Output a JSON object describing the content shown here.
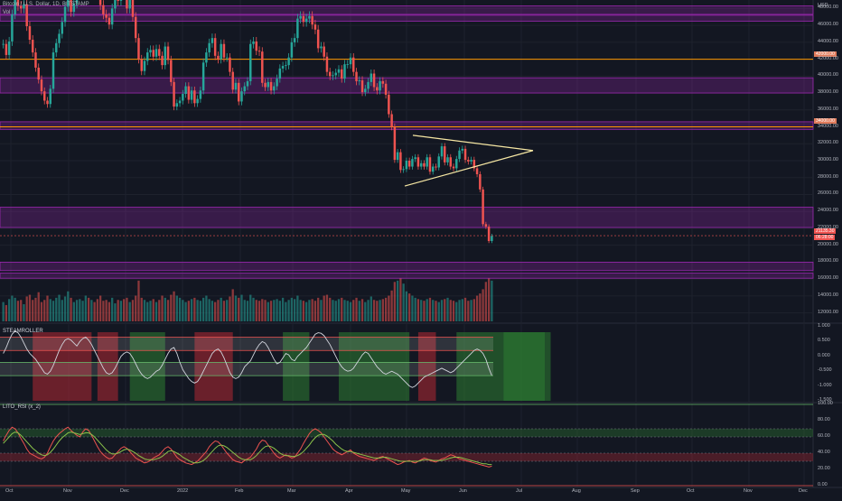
{
  "header": {
    "symbol_title": "Bitcoin / U.S. Dollar, 1D, BITSTAMP",
    "vol_label": "Vol",
    "currency": "USD"
  },
  "colors": {
    "background": "#131722",
    "up": "#26a69a",
    "down": "#ef5350",
    "zone_purple": "#9c27b0",
    "orange_line": "#ff9800",
    "triangle": "#f5e6a3"
  },
  "chart_data": [
    {
      "type": "candlestick",
      "title": "Bitcoin / U.S. Dollar, 1D, BITSTAMP",
      "x_tick_labels": [
        "Oct",
        "Nov",
        "Dec",
        "2022",
        "Feb",
        "Mar",
        "Apr",
        "May",
        "Jun",
        "Jul",
        "Aug",
        "Sep",
        "Oct",
        "Nov",
        "Dec"
      ],
      "y_tick_labels": [
        "12000.00",
        "14000.00",
        "16000.00",
        "18000.00",
        "20000.00",
        "22000.00",
        "24000.00",
        "26000.00",
        "28000.00",
        "30000.00",
        "32000.00",
        "34000.00",
        "36000.00",
        "38000.00",
        "40000.00",
        "42000.00",
        "44000.00",
        "46000.00",
        "48000.00"
      ],
      "ylim": [
        11000,
        49000
      ],
      "current_price_label": "21135.30",
      "current_countdown_label": "06:28:00",
      "orange_level_labels": [
        "42000.00",
        "34000.00"
      ],
      "horizontal_levels": [
        42000,
        34000
      ],
      "supply_demand_zones": [
        [
          47300,
          48300
        ],
        [
          46500,
          47200
        ],
        [
          38000,
          39800
        ],
        [
          33700,
          34600
        ],
        [
          22100,
          24500
        ],
        [
          17000,
          18000
        ],
        [
          16100,
          16700
        ]
      ],
      "triangle": {
        "upper": [
          [
            33000,
            "May 2"
          ],
          [
            31200,
            "Jun 12"
          ]
        ],
        "lower": [
          [
            27000,
            "May 1"
          ],
          [
            31200,
            "Jun 12"
          ]
        ]
      },
      "close_series": [
        43800,
        42500,
        44100,
        47300,
        49000,
        48300,
        48000,
        48500,
        45900,
        44300,
        42800,
        41000,
        39600,
        38200,
        37100,
        36700,
        38500,
        42800,
        43900,
        45000,
        46400,
        48200,
        49000,
        47600,
        48600,
        50300,
        51200,
        52700,
        53100,
        51600,
        51900,
        51200,
        50700,
        48400,
        47300,
        46900,
        46100,
        48000,
        49800,
        48900,
        51200,
        50700,
        48000,
        49200,
        47000,
        44500,
        42000,
        40600,
        41800,
        42800,
        43100,
        42300,
        43200,
        42400,
        41300,
        43500,
        41900,
        39300,
        36400,
        36800,
        37100,
        37900,
        38800,
        37200,
        38300,
        36800,
        37300,
        38300,
        41600,
        42800,
        43900,
        44500,
        42400,
        42000,
        43800,
        42200,
        42200,
        40500,
        38400,
        39200,
        37000,
        38200,
        38800,
        39400,
        43800,
        44100,
        43000,
        42900,
        39200,
        38700,
        39300,
        38300,
        38800,
        39700,
        40900,
        41200,
        41300,
        42200,
        44000,
        44500,
        46800,
        47100,
        46400,
        46800,
        47100,
        46100,
        45500,
        43300,
        43500,
        42300,
        40500,
        40000,
        40100,
        40400,
        40800,
        39700,
        41400,
        41400,
        42200,
        40500,
        39400,
        39500,
        38100,
        38500,
        39300,
        40300,
        38700,
        38300,
        39400,
        39100,
        37800,
        35500,
        34000,
        30100,
        31000,
        28900,
        29000,
        30000,
        29300,
        30200,
        30400,
        29300,
        29700,
        29300,
        30400,
        28700,
        29300,
        29200,
        30500,
        31700,
        29800,
        30400,
        29300,
        29100,
        30200,
        31200,
        31400,
        30100,
        29900,
        30100,
        29100,
        28400,
        26600,
        22500,
        22200,
        20500,
        21100
      ],
      "volume_series": [
        0.45,
        0.38,
        0.52,
        0.6,
        0.55,
        0.48,
        0.5,
        0.4,
        0.58,
        0.62,
        0.5,
        0.55,
        0.68,
        0.45,
        0.5,
        0.6,
        0.52,
        0.48,
        0.55,
        0.62,
        0.5,
        0.58,
        0.7,
        0.55,
        0.45,
        0.5,
        0.52,
        0.48,
        0.6,
        0.55,
        0.5,
        0.45,
        0.52,
        0.6,
        0.48,
        0.5,
        0.45,
        0.55,
        0.42,
        0.5,
        0.48,
        0.52,
        0.55,
        0.45,
        0.5,
        0.6,
        0.95,
        0.55,
        0.5,
        0.45,
        0.48,
        0.52,
        0.45,
        0.5,
        0.6,
        0.55,
        0.5,
        0.62,
        0.7,
        0.6,
        0.55,
        0.5,
        0.45,
        0.48,
        0.52,
        0.55,
        0.5,
        0.48,
        0.55,
        0.6,
        0.52,
        0.48,
        0.45,
        0.5,
        0.55,
        0.48,
        0.5,
        0.58,
        0.75,
        0.6,
        0.55,
        0.62,
        0.5,
        0.48,
        0.62,
        0.55,
        0.5,
        0.48,
        0.52,
        0.5,
        0.45,
        0.48,
        0.5,
        0.52,
        0.48,
        0.55,
        0.45,
        0.5,
        0.55,
        0.52,
        0.6,
        0.5,
        0.48,
        0.45,
        0.5,
        0.52,
        0.48,
        0.55,
        0.5,
        0.6,
        0.62,
        0.55,
        0.5,
        0.48,
        0.52,
        0.55,
        0.5,
        0.48,
        0.45,
        0.5,
        0.55,
        0.48,
        0.52,
        0.45,
        0.5,
        0.58,
        0.5,
        0.48,
        0.5,
        0.52,
        0.55,
        0.6,
        0.72,
        0.92,
        0.95,
        1.0,
        0.88,
        0.7,
        0.65,
        0.6,
        0.55,
        0.52,
        0.5,
        0.48,
        0.52,
        0.55,
        0.5,
        0.48,
        0.45,
        0.5,
        0.52,
        0.55,
        0.5,
        0.48,
        0.45,
        0.5,
        0.52,
        0.55,
        0.48,
        0.5,
        0.52,
        0.6,
        0.65,
        0.75,
        0.92,
        1.0,
        0.95
      ]
    },
    {
      "type": "oscillator",
      "title": "STEAMROLLER",
      "y_tick_labels": [
        "1.000",
        "0.500",
        "0.000",
        "-0.500",
        "-1.000",
        "-1.500"
      ],
      "ylim": [
        -1.5,
        1.0
      ],
      "levels": [
        0.65,
        0.2,
        -0.2,
        -0.65
      ],
      "line_series": [
        0.1,
        0.3,
        0.55,
        0.75,
        0.85,
        0.8,
        0.65,
        0.45,
        0.25,
        0.1,
        0.0,
        -0.1,
        -0.25,
        -0.4,
        -0.55,
        -0.6,
        -0.5,
        -0.3,
        -0.05,
        0.2,
        0.4,
        0.55,
        0.6,
        0.55,
        0.45,
        0.35,
        0.5,
        0.6,
        0.65,
        0.55,
        0.4,
        0.2,
        0.0,
        -0.2,
        -0.4,
        -0.55,
        -0.6,
        -0.55,
        -0.4,
        -0.2,
        0.0,
        0.1,
        0.15,
        0.1,
        -0.05,
        -0.25,
        -0.45,
        -0.6,
        -0.7,
        -0.75,
        -0.7,
        -0.6,
        -0.5,
        -0.45,
        -0.3,
        -0.1,
        0.1,
        0.25,
        0.3,
        0.1,
        -0.2,
        -0.45,
        -0.6,
        -0.75,
        -0.85,
        -0.9,
        -0.85,
        -0.7,
        -0.5,
        -0.3,
        -0.1,
        0.1,
        0.2,
        0.25,
        0.15,
        -0.05,
        -0.3,
        -0.55,
        -0.7,
        -0.75,
        -0.7,
        -0.55,
        -0.35,
        -0.15,
        0.05,
        0.25,
        0.4,
        0.5,
        0.45,
        0.3,
        0.1,
        -0.1,
        -0.25,
        -0.2,
        -0.05,
        0.1,
        0.05,
        -0.1,
        -0.15,
        0.0,
        0.1,
        0.2,
        0.3,
        0.45,
        0.6,
        0.75,
        0.8,
        0.78,
        0.7,
        0.55,
        0.4,
        0.2,
        0.0,
        -0.2,
        -0.35,
        -0.45,
        -0.5,
        -0.48,
        -0.4,
        -0.25,
        -0.1,
        0.05,
        0.15,
        0.1,
        -0.05,
        -0.2,
        -0.35,
        -0.45,
        -0.55,
        -0.6,
        -0.55,
        -0.5,
        -0.55,
        -0.6,
        -0.7,
        -0.8,
        -0.9,
        -1.0,
        -1.05,
        -1.0,
        -0.9,
        -0.8,
        -0.7,
        -0.65,
        -0.6,
        -0.55,
        -0.5,
        -0.45,
        -0.4,
        -0.45,
        -0.5,
        -0.55,
        -0.5,
        -0.4,
        -0.3,
        -0.2,
        -0.1,
        0.0,
        0.1,
        0.2,
        0.25,
        0.2,
        0.1,
        -0.1,
        -0.4,
        -0.65
      ],
      "bg_zones": [
        {
          "from": 10,
          "to": 30,
          "color": "red"
        },
        {
          "from": 32,
          "to": 39,
          "color": "red"
        },
        {
          "from": 43,
          "to": 55,
          "color": "green"
        },
        {
          "from": 65,
          "to": 78,
          "color": "red"
        },
        {
          "from": 95,
          "to": 104,
          "color": "green"
        },
        {
          "from": 114,
          "to": 138,
          "color": "green"
        },
        {
          "from": 141,
          "to": 147,
          "color": "red"
        },
        {
          "from": 154,
          "to": 186,
          "color": "green"
        },
        {
          "from": 170,
          "to": 184,
          "color": "green"
        }
      ]
    },
    {
      "type": "rsi",
      "title": "LITO_RSI (x_2)",
      "y_tick_labels": [
        "100.00",
        "80.00",
        "60.00",
        "40.00",
        "20.00",
        "0.00"
      ],
      "ylim": [
        0,
        100
      ],
      "levels": [
        70,
        60,
        40,
        30
      ],
      "series": [
        {
          "name": "fast",
          "color": "#ef5350",
          "values": [
            55,
            62,
            68,
            72,
            70,
            65,
            58,
            52,
            45,
            40,
            38,
            36,
            34,
            33,
            35,
            40,
            48,
            55,
            60,
            64,
            67,
            70,
            72,
            68,
            65,
            62,
            60,
            66,
            70,
            68,
            62,
            55,
            48,
            42,
            38,
            35,
            33,
            34,
            38,
            42,
            46,
            48,
            46,
            42,
            38,
            34,
            32,
            30,
            28,
            29,
            31,
            34,
            36,
            38,
            42,
            46,
            48,
            45,
            40,
            35,
            32,
            30,
            28,
            27,
            26,
            28,
            30,
            34,
            38,
            42,
            48,
            52,
            55,
            54,
            50,
            45,
            40,
            36,
            32,
            30,
            29,
            28,
            31,
            35,
            40,
            45,
            52,
            56,
            55,
            50,
            45,
            40,
            36,
            34,
            36,
            38,
            36,
            34,
            35,
            40,
            45,
            52,
            58,
            64,
            68,
            70,
            68,
            65,
            60,
            55,
            50,
            45,
            42,
            40,
            38,
            40,
            42,
            44,
            40,
            38,
            36,
            35,
            34,
            33,
            32,
            31,
            33,
            35,
            36,
            34,
            32,
            30,
            28,
            26,
            27,
            29,
            30,
            31,
            29,
            28,
            30,
            32,
            34,
            33,
            31,
            30,
            29,
            31,
            33,
            34,
            36,
            38,
            37,
            35,
            33,
            32,
            31,
            30,
            29,
            28,
            27,
            26,
            25,
            24,
            23,
            24
          ]
        },
        {
          "name": "slow",
          "color": "#8bc34a",
          "values": [
            52,
            56,
            60,
            64,
            66,
            65,
            62,
            58,
            54,
            50,
            46,
            43,
            40,
            38,
            37,
            38,
            41,
            45,
            50,
            55,
            59,
            62,
            65,
            66,
            65,
            64,
            63,
            64,
            65,
            65,
            63,
            60,
            56,
            52,
            48,
            44,
            41,
            39,
            39,
            40,
            42,
            44,
            45,
            44,
            42,
            40,
            37,
            35,
            33,
            32,
            32,
            32,
            33,
            34,
            36,
            39,
            42,
            43,
            42,
            40,
            38,
            35,
            33,
            31,
            29,
            28,
            28,
            29,
            31,
            34,
            38,
            42,
            46,
            49,
            50,
            49,
            47,
            44,
            41,
            38,
            35,
            33,
            32,
            32,
            34,
            37,
            41,
            45,
            48,
            49,
            48,
            46,
            43,
            40,
            38,
            37,
            37,
            36,
            36,
            37,
            39,
            42,
            46,
            50,
            55,
            59,
            62,
            63,
            63,
            61,
            58,
            55,
            51,
            48,
            45,
            43,
            42,
            42,
            41,
            40,
            39,
            38,
            37,
            36,
            35,
            34,
            34,
            34,
            35,
            35,
            34,
            33,
            32,
            31,
            30,
            30,
            30,
            30,
            30,
            30,
            30,
            31,
            32,
            32,
            32,
            31,
            31,
            31,
            31,
            32,
            33,
            34,
            35,
            35,
            35,
            34,
            33,
            32,
            31,
            30,
            29,
            28,
            27,
            27,
            26,
            26
          ]
        }
      ]
    }
  ],
  "time_axis": {
    "labels": [
      "Oct",
      "Nov",
      "Dec",
      "2022",
      "Feb",
      "Mar",
      "Apr",
      "May",
      "Jun",
      "Jul",
      "Aug",
      "Sep",
      "Oct",
      "Nov",
      "Dec"
    ]
  }
}
